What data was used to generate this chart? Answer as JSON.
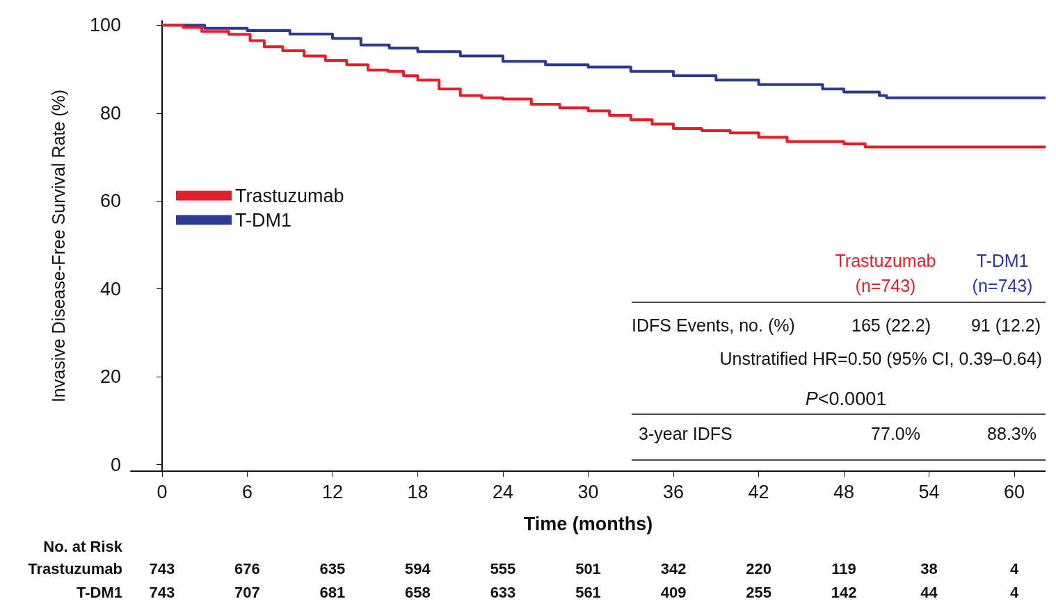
{
  "chart_data": {
    "type": "step",
    "xlabel": "Time (months)",
    "ylabel": "Invasive Disease-Free Survival Rate (%)",
    "xlim": [
      -2.2,
      62.2
    ],
    "ylim": [
      -1.5,
      101
    ],
    "xticks": [
      0,
      6,
      12,
      18,
      24,
      30,
      36,
      42,
      48,
      54,
      60
    ],
    "yticks": [
      0,
      20,
      40,
      60,
      80,
      100
    ],
    "grid": false,
    "legend": "top left",
    "line_style": "solid",
    "marker": "none",
    "series": [
      {
        "name": "Trastuzumab",
        "color": "#e3202a",
        "x": [
          0,
          1.5,
          2.8,
          4.7,
          6.2,
          7.2,
          8.5,
          10,
          11.5,
          13,
          14.5,
          15.9,
          17,
          18,
          19.5,
          21,
          22.5,
          24,
          26,
          28,
          30,
          31.5,
          33,
          34.5,
          36,
          38,
          40,
          42,
          44,
          46,
          48,
          49.5,
          62.2
        ],
        "values": [
          100,
          99.5,
          98.6,
          97.9,
          96.5,
          95.1,
          94.2,
          93,
          92,
          91,
          89.8,
          89.5,
          88.5,
          87.5,
          85.5,
          84,
          83.5,
          83.2,
          82,
          81.2,
          80.5,
          79.5,
          78.5,
          77.5,
          76.5,
          76,
          75.5,
          74.5,
          73.5,
          73.5,
          73,
          72.3,
          72.3
        ]
      },
      {
        "name": "T-DM1",
        "color": "#2b3990",
        "x": [
          0,
          3,
          6,
          9,
          12,
          14,
          16,
          18,
          21,
          24,
          27,
          30,
          33,
          36,
          39,
          42,
          45.5,
          46.5,
          48,
          50.5,
          51,
          62.2
        ],
        "values": [
          100,
          99.3,
          98.8,
          98,
          97,
          95.5,
          94.8,
          94,
          93,
          91.8,
          91,
          90.5,
          89.5,
          88.5,
          87.5,
          86.5,
          86.5,
          85.5,
          84.8,
          84,
          83.5,
          83.5
        ]
      }
    ],
    "annotations": [
      "Trastuzumab\n(n=743)",
      "T-DM1\n(n=743)",
      "IDFS Events, no. (%)",
      "165 (22.2)",
      "91 (12.2)",
      "Unstratified HR=0.50 (95% CI, 0.39–0.64)",
      "P<0.0001",
      "3-year IDFS",
      "77.0%",
      "88.3%",
      "No. at Risk",
      "Trastuzumab 743 676 635 594 555 501 342 220 119 38 4",
      "T-DM1 743 707 681 658 633 561 409 255 142 44 4"
    ]
  }
}
